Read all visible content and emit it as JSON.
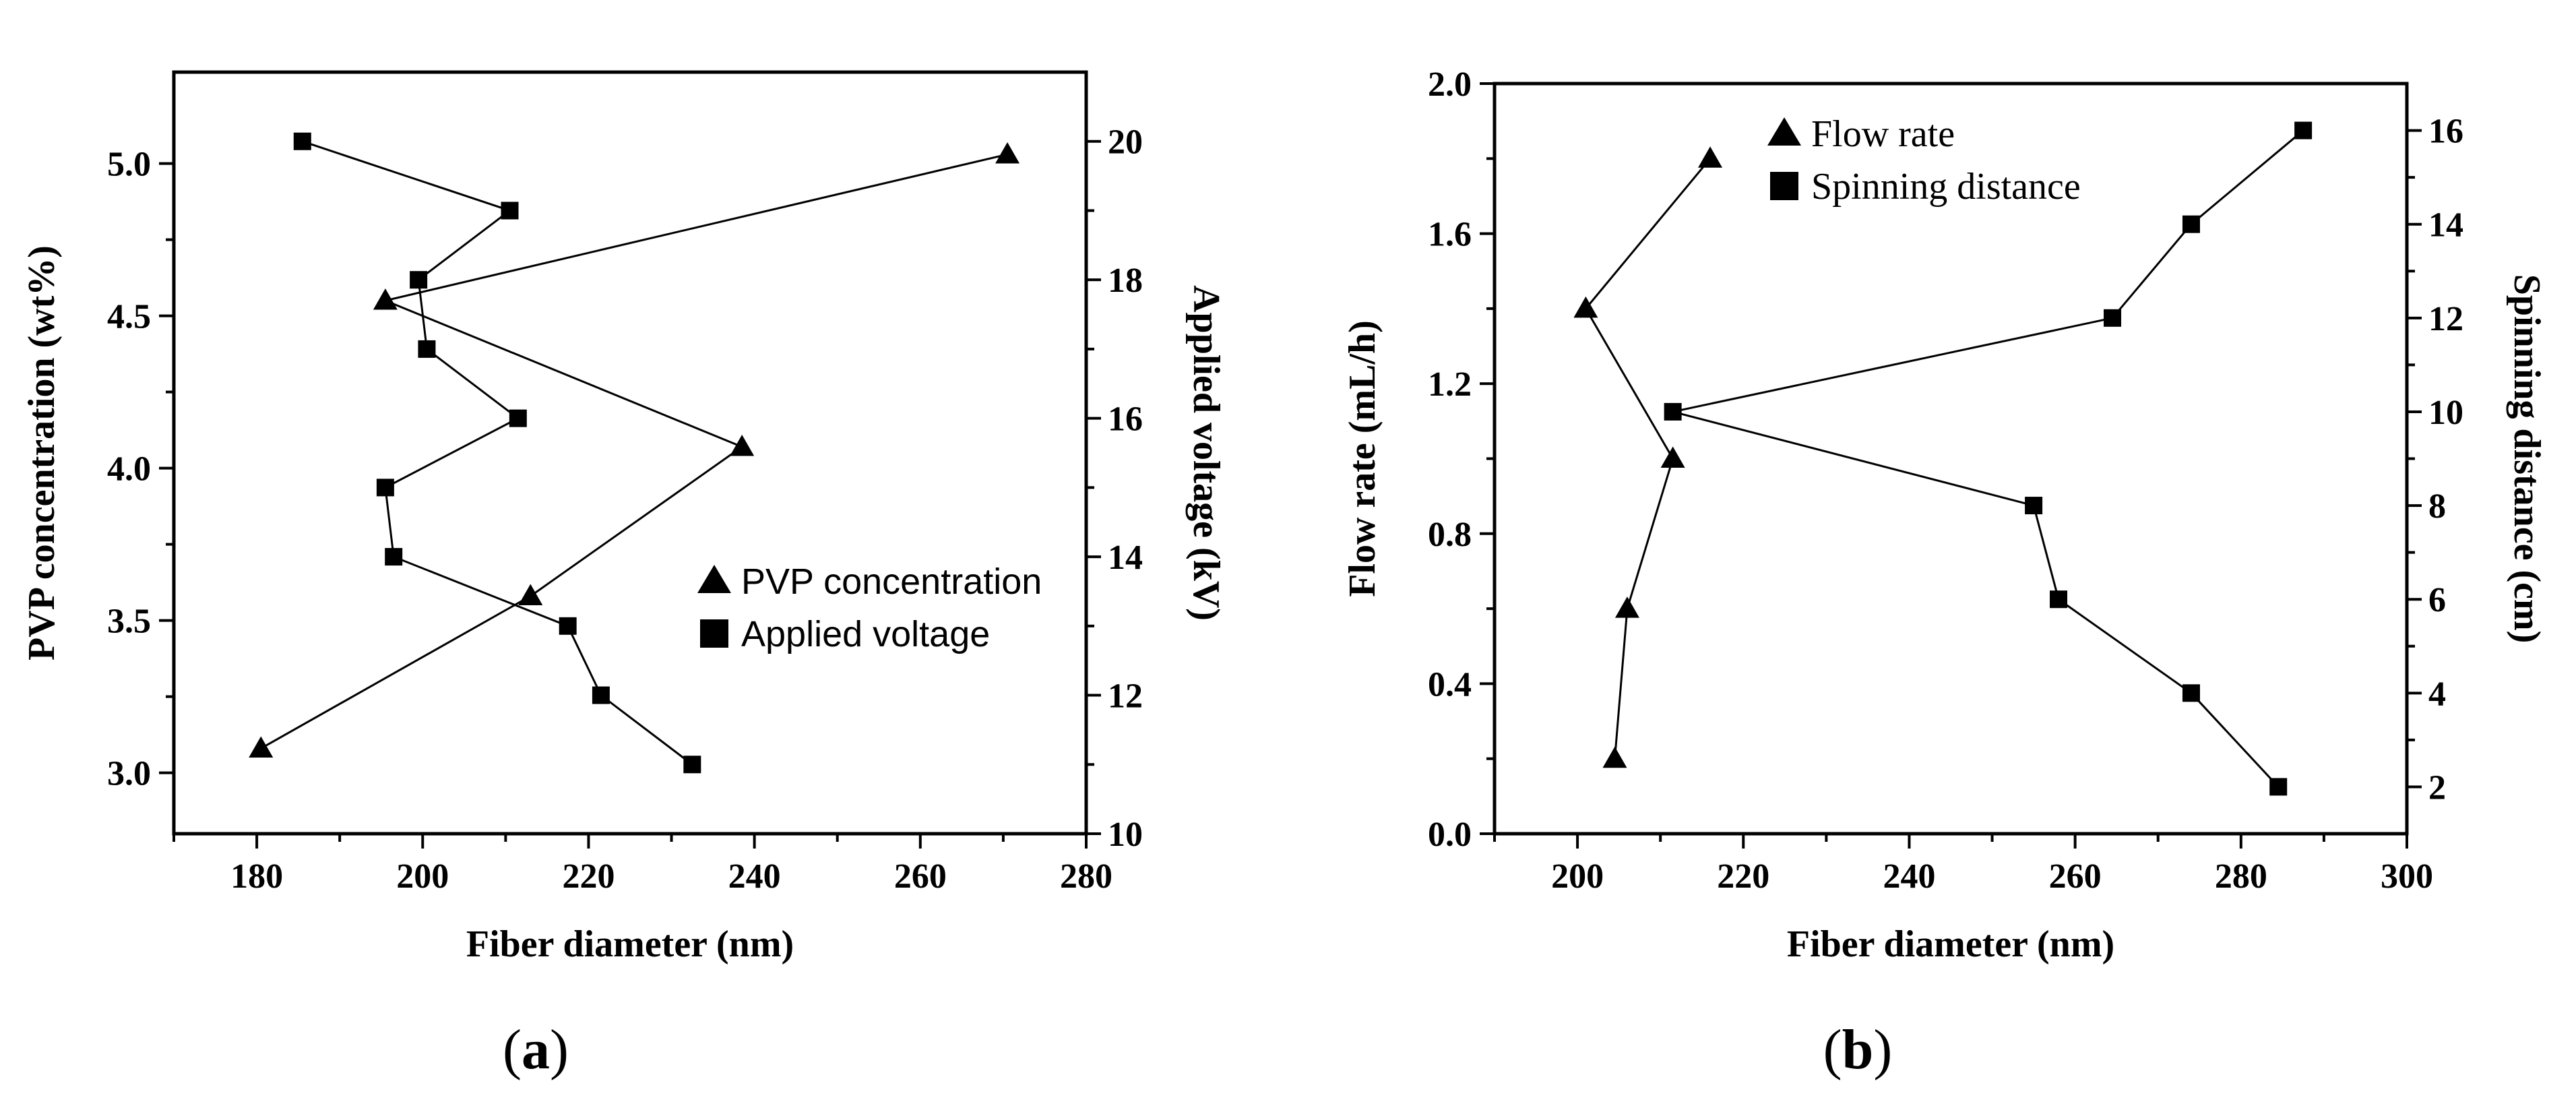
{
  "panels": [
    {
      "label_open": "(",
      "label_letter": "a",
      "label_close": ")"
    },
    {
      "label_open": "(",
      "label_letter": "b",
      "label_close": ")"
    }
  ],
  "chart_data": [
    {
      "type": "scatter",
      "panel": "a",
      "xlabel": "Fiber diameter (nm)",
      "ylabel_left": "PVP concentration (wt%)",
      "ylabel_right": "Applied voltage (kV)",
      "xlim": [
        170,
        280
      ],
      "ylim_left": [
        2.8,
        5.3
      ],
      "ylim_right": [
        10,
        21
      ],
      "xticks": [
        180,
        200,
        220,
        240,
        260,
        280
      ],
      "yticks_left": [
        3.0,
        3.5,
        4.0,
        4.5,
        5.0
      ],
      "yticks_right": [
        10,
        12,
        14,
        16,
        18,
        20
      ],
      "legend_position": "middle-right",
      "series": [
        {
          "name": "PVP concentration",
          "marker": "triangle",
          "axis": "left",
          "points": [
            {
              "x": 270.5,
              "y": 5.03
            },
            {
              "x": 195.5,
              "y": 4.55
            },
            {
              "x": 238.5,
              "y": 4.07
            },
            {
              "x": 213,
              "y": 3.58
            },
            {
              "x": 180.5,
              "y": 3.08
            }
          ]
        },
        {
          "name": "Applied voltage",
          "marker": "square",
          "axis": "right",
          "points": [
            {
              "x": 185.5,
              "y": 20
            },
            {
              "x": 210.5,
              "y": 19
            },
            {
              "x": 199.5,
              "y": 18
            },
            {
              "x": 200.5,
              "y": 17
            },
            {
              "x": 211.5,
              "y": 16
            },
            {
              "x": 195.5,
              "y": 15
            },
            {
              "x": 196.5,
              "y": 14
            },
            {
              "x": 217.5,
              "y": 13
            },
            {
              "x": 221.5,
              "y": 12
            },
            {
              "x": 232.5,
              "y": 11
            }
          ]
        }
      ]
    },
    {
      "type": "scatter",
      "panel": "b",
      "xlabel": "Fiber diameter (nm)",
      "ylabel_left": "Flow rate (mL/h)",
      "ylabel_right": "Spinning distance (cm)",
      "xlim": [
        190,
        300
      ],
      "ylim_left": [
        0.0,
        2.0
      ],
      "ylim_right": [
        1,
        17
      ],
      "xticks": [
        200,
        220,
        240,
        260,
        280,
        300
      ],
      "yticks_left": [
        0.0,
        0.4,
        0.8,
        1.2,
        1.6,
        2.0
      ],
      "yticks_right": [
        2,
        4,
        6,
        8,
        10,
        12,
        14,
        16
      ],
      "legend_position": "top-left",
      "series": [
        {
          "name": "Flow rate",
          "marker": "triangle",
          "axis": "left",
          "points": [
            {
              "x": 216,
              "y": 1.8
            },
            {
              "x": 201,
              "y": 1.4
            },
            {
              "x": 211.5,
              "y": 1.0
            },
            {
              "x": 206,
              "y": 0.6
            },
            {
              "x": 204.5,
              "y": 0.2
            }
          ]
        },
        {
          "name": "Spinning distance",
          "marker": "square",
          "axis": "right",
          "points": [
            {
              "x": 287.5,
              "y": 16
            },
            {
              "x": 274,
              "y": 14
            },
            {
              "x": 264.5,
              "y": 12
            },
            {
              "x": 211.5,
              "y": 10
            },
            {
              "x": 255,
              "y": 8
            },
            {
              "x": 258,
              "y": 6
            },
            {
              "x": 274,
              "y": 4
            },
            {
              "x": 284.5,
              "y": 2
            }
          ]
        }
      ]
    }
  ]
}
